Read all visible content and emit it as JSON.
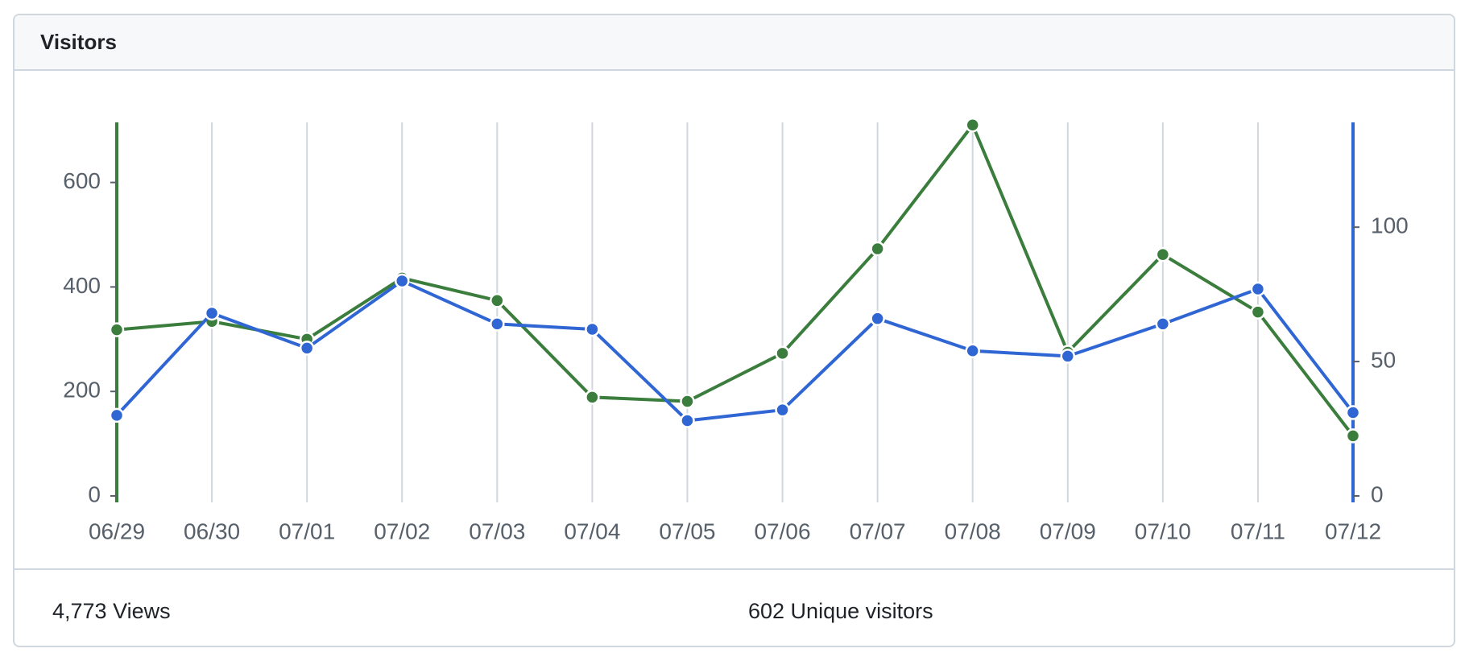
{
  "chart_data": {
    "type": "line",
    "title": "Visitors",
    "categories": [
      "06/29",
      "06/30",
      "07/01",
      "07/02",
      "07/03",
      "07/04",
      "07/05",
      "07/06",
      "07/07",
      "07/08",
      "07/09",
      "07/10",
      "07/11",
      "07/12"
    ],
    "series": [
      {
        "name": "Views",
        "color": "#3a7d3c",
        "values": [
          318,
          334,
          300,
          417,
          374,
          189,
          181,
          273,
          473,
          710,
          275,
          462,
          352,
          115
        ]
      },
      {
        "name": "Unique visitors",
        "color": "#2f66d4",
        "axis": "y2",
        "values": [
          30,
          68,
          55,
          80,
          64,
          62,
          28,
          32,
          66,
          54,
          52,
          64,
          77,
          31
        ]
      }
    ],
    "ylim": [
      0,
      715
    ],
    "yticks": [
      0,
      200,
      400,
      600
    ],
    "y2lim": [
      0,
      139
    ],
    "y2ticks": [
      0,
      50,
      100
    ],
    "grid": true,
    "summary": [
      "4,773 Views",
      "602 Unique visitors"
    ]
  }
}
